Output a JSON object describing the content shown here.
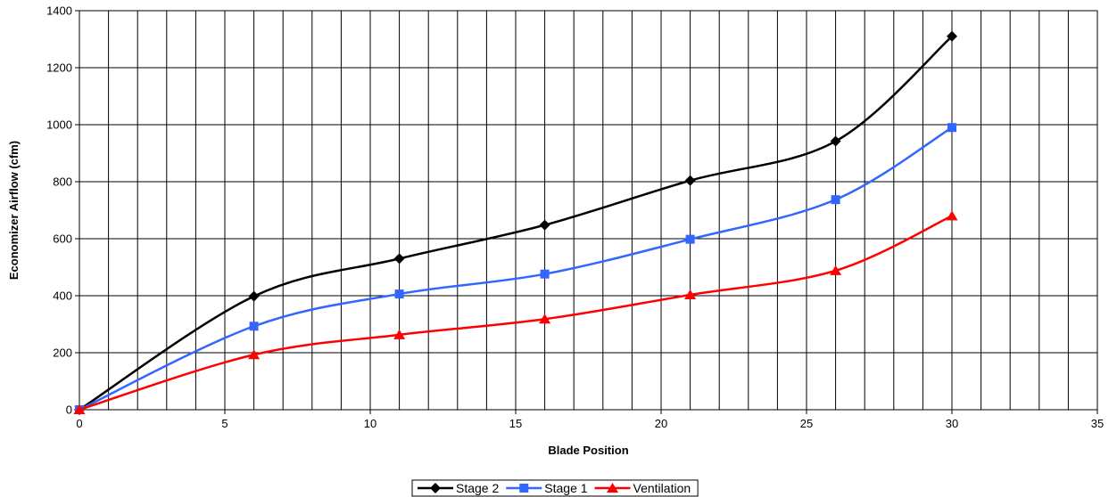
{
  "chart_data": {
    "type": "line",
    "smooth": true,
    "xlabel": "Blade Position",
    "ylabel": "Economizer Airflow (cfm)",
    "xlim": [
      0,
      35
    ],
    "ylim": [
      0,
      1400
    ],
    "xticks": [
      0,
      5,
      10,
      15,
      20,
      25,
      30,
      35
    ],
    "yticks": [
      0,
      200,
      400,
      600,
      800,
      1000,
      1200,
      1400
    ],
    "x_minor_gridline_step": 1,
    "grid": true,
    "legend_position": "bottom",
    "series": [
      {
        "name": "Stage 2",
        "color": "#000000",
        "marker": "diamond",
        "points": [
          [
            0,
            0
          ],
          [
            6,
            398
          ],
          [
            11,
            530
          ],
          [
            16,
            648
          ],
          [
            21,
            804
          ],
          [
            26,
            942
          ],
          [
            30,
            1310
          ]
        ]
      },
      {
        "name": "Stage 1",
        "color": "#3366ff",
        "marker": "square",
        "points": [
          [
            0,
            0
          ],
          [
            6,
            293
          ],
          [
            11,
            406
          ],
          [
            16,
            476
          ],
          [
            21,
            598
          ],
          [
            26,
            737
          ],
          [
            30,
            990
          ]
        ]
      },
      {
        "name": "Ventilation",
        "color": "#ff0000",
        "marker": "triangle",
        "points": [
          [
            0,
            0
          ],
          [
            6,
            193
          ],
          [
            11,
            263
          ],
          [
            16,
            318
          ],
          [
            21,
            403
          ],
          [
            26,
            488
          ],
          [
            30,
            680
          ]
        ]
      }
    ]
  }
}
